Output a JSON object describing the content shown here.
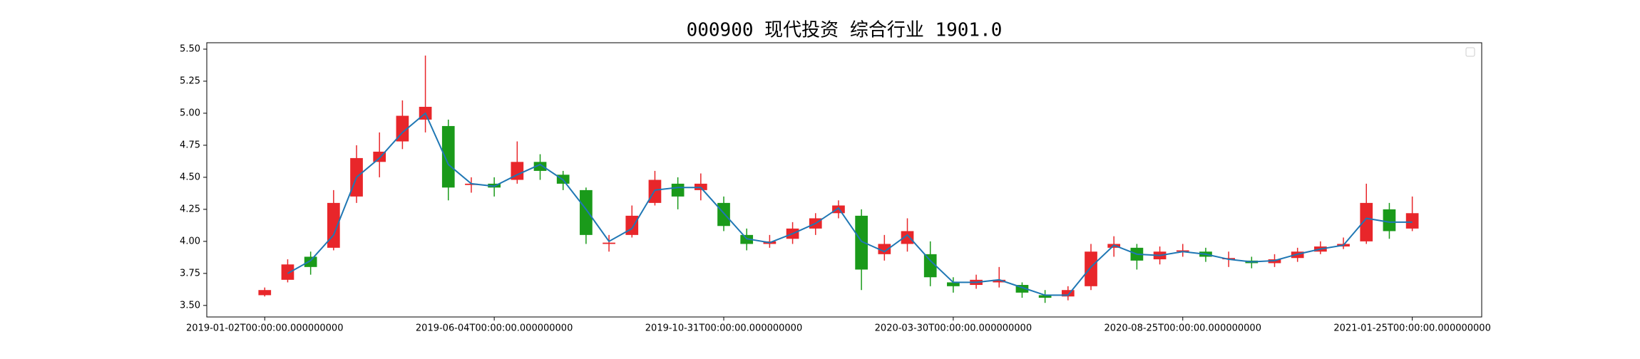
{
  "chart_data": {
    "type": "candlestick",
    "title": "000900 现代投资 综合行业 1901.0",
    "x": [
      0,
      10,
      20,
      30,
      40,
      50,
      60,
      70,
      80,
      90,
      100,
      110,
      120,
      130,
      140,
      150,
      160,
      170,
      180,
      190,
      200,
      210,
      220,
      230,
      240,
      250,
      260,
      270,
      280,
      290,
      300,
      310,
      320,
      330,
      340,
      350,
      360,
      370,
      380,
      390,
      400,
      410,
      420,
      430,
      440,
      450,
      460,
      470,
      480,
      490,
      500
    ],
    "open": [
      3.58,
      3.7,
      3.88,
      3.95,
      4.35,
      4.62,
      4.78,
      4.95,
      4.9,
      4.44,
      4.45,
      4.48,
      4.62,
      4.52,
      4.4,
      3.98,
      4.05,
      4.3,
      4.45,
      4.4,
      4.3,
      4.05,
      3.98,
      4.02,
      4.1,
      4.22,
      4.2,
      3.9,
      3.98,
      3.9,
      3.68,
      3.66,
      3.68,
      3.66,
      3.58,
      3.57,
      3.65,
      3.95,
      3.95,
      3.86,
      3.92,
      3.92,
      3.86,
      3.85,
      3.83,
      3.87,
      3.92,
      3.96,
      4.0,
      4.25,
      4.1
    ],
    "high": [
      3.64,
      3.86,
      3.92,
      4.4,
      4.75,
      4.85,
      5.1,
      5.45,
      4.95,
      4.5,
      4.5,
      4.78,
      4.68,
      4.55,
      4.42,
      4.05,
      4.28,
      4.55,
      4.5,
      4.53,
      4.35,
      4.1,
      4.05,
      4.15,
      4.22,
      4.32,
      4.25,
      4.05,
      4.18,
      4.0,
      3.72,
      3.74,
      3.8,
      3.68,
      3.62,
      3.65,
      3.98,
      4.04,
      3.98,
      3.96,
      3.98,
      3.95,
      3.92,
      3.88,
      3.9,
      3.95,
      4.0,
      4.03,
      4.45,
      4.3,
      4.35
    ],
    "low": [
      3.57,
      3.68,
      3.74,
      3.93,
      4.3,
      4.5,
      4.72,
      4.85,
      4.32,
      4.38,
      4.35,
      4.45,
      4.48,
      4.4,
      3.98,
      3.92,
      4.03,
      4.28,
      4.25,
      4.32,
      4.08,
      3.93,
      3.95,
      3.98,
      4.05,
      4.18,
      3.62,
      3.85,
      3.92,
      3.65,
      3.6,
      3.63,
      3.64,
      3.56,
      3.52,
      3.54,
      3.62,
      3.88,
      3.78,
      3.82,
      3.88,
      3.84,
      3.8,
      3.79,
      3.8,
      3.84,
      3.9,
      3.94,
      3.98,
      4.02,
      4.08
    ],
    "close": [
      3.62,
      3.82,
      3.8,
      4.3,
      4.65,
      4.7,
      4.98,
      5.05,
      4.42,
      4.45,
      4.42,
      4.62,
      4.55,
      4.45,
      4.05,
      3.99,
      4.2,
      4.48,
      4.35,
      4.45,
      4.12,
      3.98,
      4.0,
      4.1,
      4.18,
      4.28,
      3.78,
      3.98,
      4.08,
      3.72,
      3.65,
      3.7,
      3.7,
      3.6,
      3.56,
      3.62,
      3.92,
      3.98,
      3.85,
      3.92,
      3.93,
      3.88,
      3.87,
      3.83,
      3.86,
      3.92,
      3.96,
      3.98,
      4.3,
      4.08,
      4.22
    ],
    "ma": {
      "color": "#1f77b4",
      "values": [
        null,
        3.75,
        3.85,
        4.05,
        4.5,
        4.65,
        4.85,
        5.0,
        4.6,
        4.45,
        4.43,
        4.52,
        4.6,
        4.48,
        4.25,
        4.0,
        4.1,
        4.4,
        4.42,
        4.42,
        4.22,
        4.02,
        3.99,
        4.06,
        4.14,
        4.26,
        4.0,
        3.92,
        4.05,
        3.85,
        3.68,
        3.68,
        3.7,
        3.64,
        3.58,
        3.58,
        3.8,
        3.97,
        3.9,
        3.89,
        3.92,
        3.9,
        3.86,
        3.84,
        3.85,
        3.9,
        3.94,
        3.97,
        4.18,
        4.15,
        4.15
      ]
    },
    "up_color": "#e8262a",
    "down_color": "#1a9a1a",
    "xlim": [
      -25.25,
      530.25
    ],
    "xticks": [
      {
        "value": 0,
        "label": "2019-01-02T00:00:00.000000000"
      },
      {
        "value": 100,
        "label": "2019-06-04T00:00:00.000000000"
      },
      {
        "value": 200,
        "label": "2019-10-31T00:00:00.000000000"
      },
      {
        "value": 300,
        "label": "2020-03-30T00:00:00.000000000"
      },
      {
        "value": 400,
        "label": "2020-08-25T00:00:00.000000000"
      },
      {
        "value": 500,
        "label": "2021-01-25T00:00:00.000000000"
      }
    ],
    "ylim": [
      3.41,
      5.55
    ],
    "yticks": [
      {
        "value": 3.5,
        "label": "3.50"
      },
      {
        "value": 3.75,
        "label": "3.75"
      },
      {
        "value": 4.0,
        "label": "4.00"
      },
      {
        "value": 4.25,
        "label": "4.25"
      },
      {
        "value": 4.5,
        "label": "4.50"
      },
      {
        "value": 4.75,
        "label": "4.75"
      },
      {
        "value": 5.0,
        "label": "5.00"
      },
      {
        "value": 5.25,
        "label": "5.25"
      },
      {
        "value": 5.5,
        "label": "5.50"
      }
    ],
    "legend": "upper right"
  }
}
